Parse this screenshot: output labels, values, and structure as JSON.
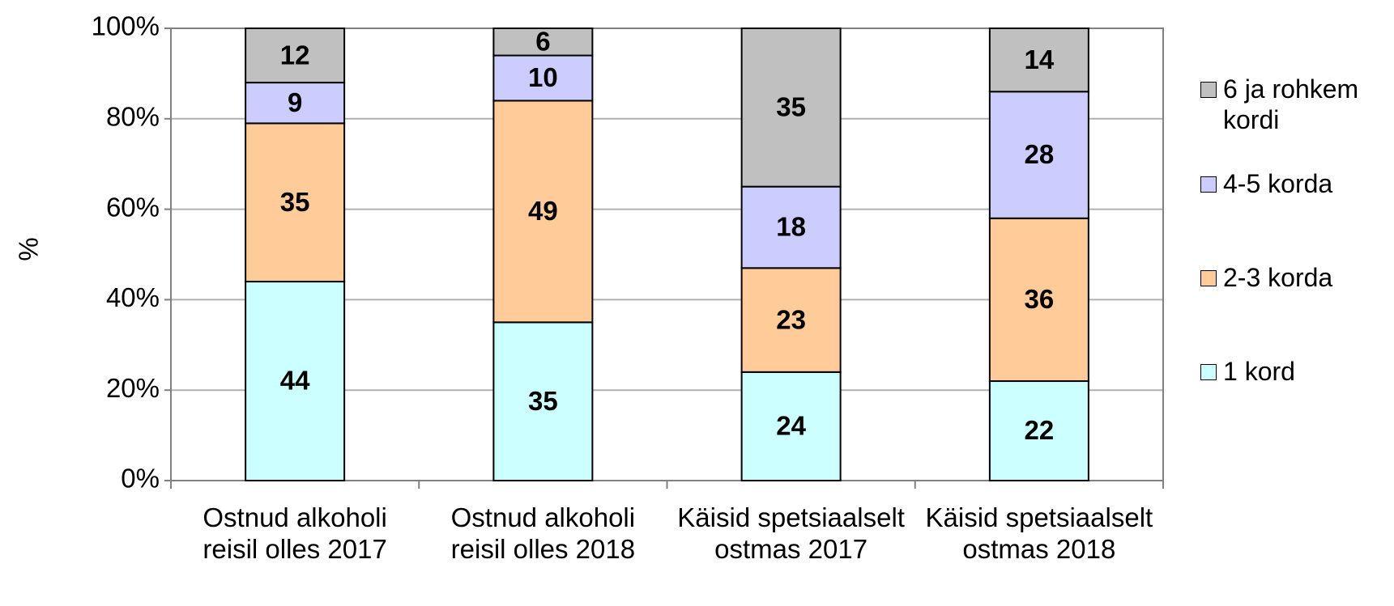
{
  "chart_data": {
    "type": "stacked_bar",
    "y_label": "%",
    "categories": [
      "Ostnud alkoholi reisil olles 2017",
      "Ostnud alkoholi reisil olles 2018",
      "Käisid spetsiaalselt ostmas 2017",
      "Käisid spetsiaalselt ostmas 2018"
    ],
    "series": [
      {
        "name": "1 kord",
        "color": "#ccffff",
        "values": [
          44,
          35,
          24,
          22
        ]
      },
      {
        "name": "2-3 korda",
        "color": "#ffcc99",
        "values": [
          35,
          49,
          23,
          36
        ]
      },
      {
        "name": "4-5 korda",
        "color": "#ccccff",
        "values": [
          9,
          10,
          18,
          28
        ]
      },
      {
        "name": "6 ja rohkem kordi",
        "color": "#c0c0c0",
        "values": [
          12,
          6,
          35,
          14
        ]
      }
    ],
    "ylim": [
      0,
      100
    ],
    "yticks": [
      {
        "value": 0,
        "label": "0%"
      },
      {
        "value": 20,
        "label": "20%"
      },
      {
        "value": 40,
        "label": "40%"
      },
      {
        "value": 60,
        "label": "60%"
      },
      {
        "value": 80,
        "label": "80%"
      },
      {
        "value": 100,
        "label": "100%"
      }
    ],
    "grid": true,
    "legend": "right"
  }
}
